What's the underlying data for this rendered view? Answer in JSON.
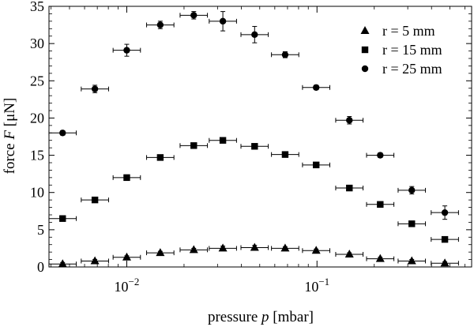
{
  "chart_data": {
    "type": "scatter",
    "x_scale": "log",
    "xlim": [
      0.0039,
      0.65
    ],
    "ylim": [
      0,
      35
    ],
    "grid": false,
    "legend_position": "top-right",
    "xlabel_parts": {
      "prefix": "pressure ",
      "var": "p",
      "suffix": " [mbar]"
    },
    "ylabel_parts": {
      "prefix": "force ",
      "var": "F",
      "suffix": " [μN]"
    },
    "x_ticks": [
      {
        "value": 0.01,
        "base": "10",
        "exp": "−2"
      },
      {
        "value": 0.1,
        "base": "10",
        "exp": "−1"
      }
    ],
    "y_ticks": [
      {
        "value": 0,
        "label": "0"
      },
      {
        "value": 5,
        "label": "5"
      },
      {
        "value": 10,
        "label": "10"
      },
      {
        "value": 15,
        "label": "15"
      },
      {
        "value": 20,
        "label": "20"
      },
      {
        "value": 25,
        "label": "25"
      },
      {
        "value": 30,
        "label": "30"
      },
      {
        "value": 35,
        "label": "35"
      }
    ],
    "series": [
      {
        "name": "r = 5 mm",
        "marker": "triangle",
        "x": [
          0.0046,
          0.0068,
          0.01,
          0.015,
          0.0225,
          0.032,
          0.047,
          0.068,
          0.099,
          0.148,
          0.215,
          0.315,
          0.47
        ],
        "y": [
          0.4,
          0.8,
          1.3,
          1.9,
          2.3,
          2.5,
          2.6,
          2.5,
          2.2,
          1.7,
          1.1,
          0.8,
          0.5
        ],
        "yerr": [
          0.2,
          0.2,
          0.2,
          0.2,
          0.2,
          0.3,
          0.3,
          0.2,
          0.2,
          0.2,
          0.2,
          0.2,
          0.2
        ]
      },
      {
        "name": "r = 15 mm",
        "marker": "square",
        "x": [
          0.0046,
          0.0068,
          0.01,
          0.015,
          0.0225,
          0.032,
          0.047,
          0.068,
          0.099,
          0.148,
          0.215,
          0.315,
          0.47
        ],
        "y": [
          6.5,
          9.0,
          12.0,
          14.7,
          16.3,
          17.0,
          16.2,
          15.1,
          13.7,
          10.6,
          8.4,
          5.8,
          3.7
        ],
        "yerr": [
          0.2,
          0.2,
          0.3,
          0.3,
          0.3,
          0.3,
          0.3,
          0.3,
          0.3,
          0.3,
          0.3,
          0.3,
          0.3
        ]
      },
      {
        "name": "r = 25 mm",
        "marker": "circle",
        "x": [
          0.0046,
          0.0068,
          0.01,
          0.015,
          0.0225,
          0.032,
          0.047,
          0.068,
          0.099,
          0.148,
          0.215,
          0.315,
          0.47
        ],
        "y": [
          18.0,
          23.9,
          29.1,
          32.5,
          33.8,
          33.0,
          31.2,
          28.5,
          24.1,
          19.7,
          15.0,
          10.3,
          7.3
        ],
        "yerr": [
          0.3,
          0.5,
          0.8,
          0.5,
          0.5,
          1.3,
          1.1,
          0.4,
          0.3,
          0.5,
          0.3,
          0.5,
          0.9
        ],
        "xerr_factor": 1.18
      }
    ]
  }
}
